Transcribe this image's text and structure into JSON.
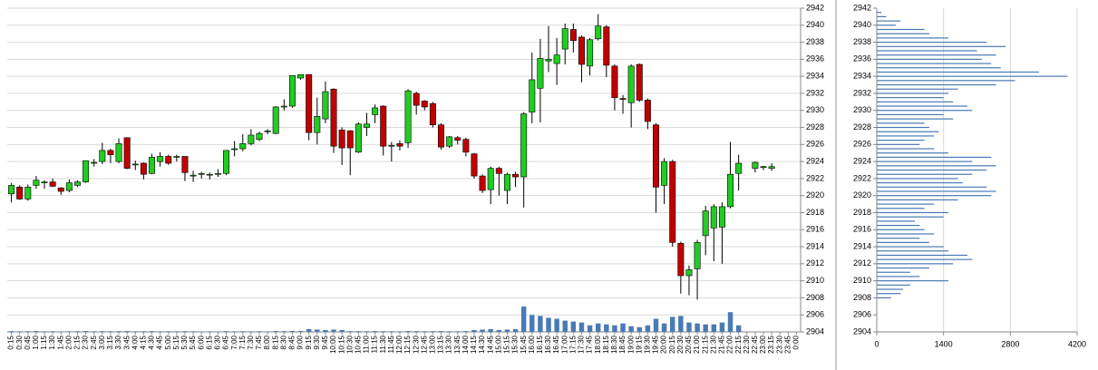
{
  "chart_data": [
    {
      "type": "candlestick",
      "categories": [
        "0:15",
        "0:30",
        "0:45",
        "1:00",
        "1:15",
        "1:30",
        "1:45",
        "2:00",
        "2:15",
        "2:30",
        "2:45",
        "3:00",
        "3:15",
        "3:30",
        "3:45",
        "4:00",
        "4:15",
        "4:30",
        "4:45",
        "5:00",
        "5:15",
        "5:30",
        "5:45",
        "6:00",
        "6:15",
        "6:30",
        "6:45",
        "7:00",
        "7:15",
        "7:30",
        "7:45",
        "8:00",
        "8:15",
        "8:30",
        "8:45",
        "9:00",
        "9:15",
        "9:30",
        "9:45",
        "10:00",
        "10:15",
        "10:30",
        "10:45",
        "11:00",
        "11:15",
        "11:30",
        "11:45",
        "12:00",
        "12:15",
        "12:30",
        "12:45",
        "13:00",
        "13:15",
        "13:30",
        "13:45",
        "14:00",
        "14:15",
        "14:30",
        "14:45",
        "15:00",
        "15:15",
        "15:30",
        "15:45",
        "16:00",
        "16:15",
        "16:30",
        "16:45",
        "17:00",
        "17:15",
        "17:30",
        "17:45",
        "18:00",
        "18:15",
        "18:30",
        "18:45",
        "19:00",
        "19:15",
        "19:30",
        "19:45",
        "20:00",
        "20:15",
        "20:30",
        "20:45",
        "21:00",
        "21:15",
        "21:30",
        "21:45",
        "22:00",
        "22:15",
        "22:30",
        "22:45",
        "23:00",
        "23:15",
        "23:30",
        "23:45",
        "0:00"
      ],
      "open": [
        2920.2,
        2921,
        2919.6,
        2921.2,
        2921.5,
        2921.6,
        2920.9,
        2920.6,
        2921.2,
        2921.6,
        2923.8,
        2924,
        2925.3,
        2924,
        2926.8,
        2923.6,
        2923.8,
        2922.6,
        2924,
        2924.6,
        2924.5,
        2924.6,
        2922.3,
        2922.5,
        2922.4,
        2922.5,
        2922.6,
        2925.4,
        2925.5,
        2926.1,
        2926.6,
        2927.5,
        2927.3,
        2930.4,
        2930.5,
        2933.8,
        2934.2,
        2927.4,
        2929,
        2932.5,
        2927.7,
        2927.6,
        2925.1,
        2928,
        2929.5,
        2930.5,
        2925.8,
        2926.1,
        2926.2,
        2932,
        2931.1,
        2930.8,
        2928.3,
        2925.8,
        2926.8,
        2926.6,
        2924.9,
        2922.3,
        2920.7,
        2923.2,
        2920.6,
        2922.5,
        2922.2,
        2929.8,
        2932.6,
        2935.8,
        2935.5,
        2937.2,
        2939.5,
        2938.6,
        2935.2,
        2938.4,
        2939.8,
        2935.2,
        2931.4,
        2930.9,
        2935.4,
        2931.2,
        2928.3,
        2921.2,
        2924,
        2914.4,
        2910.6,
        2911.4,
        2915.3,
        2916.2,
        2916.3,
        2918.7,
        2922.6,
        null,
        2923.2,
        2923.3,
        2923.2,
        null,
        null,
        null
      ],
      "high": [
        2921.5,
        2921.2,
        2921.3,
        2922.3,
        2921.8,
        2922,
        2921,
        2921.9,
        2921.8,
        2924.1,
        2924.3,
        2926.2,
        2925.5,
        2926.7,
        2926.8,
        2924.1,
        2923.9,
        2924.9,
        2925.1,
        2924.8,
        2924.8,
        2924.6,
        2922.9,
        2922.8,
        2922.7,
        2923.1,
        2925.3,
        2926.4,
        2927.2,
        2927.8,
        2927.5,
        2927.8,
        2930.5,
        2931.3,
        2934.1,
        2934.2,
        2934.2,
        2931.5,
        2933.4,
        2932.6,
        2928,
        2927.7,
        2928.6,
        2929.7,
        2930.7,
        2930.6,
        2926.3,
        2926.5,
        2932.5,
        2932.2,
        2931.2,
        2931,
        2928.5,
        2927,
        2927,
        2926.8,
        2925,
        2922.5,
        2923.4,
        2923.4,
        2922.7,
        2922.8,
        2929.8,
        2936.8,
        2938.4,
        2939.9,
        2938.5,
        2940.2,
        2940.2,
        2938.8,
        2938.5,
        2941.3,
        2940,
        2935.4,
        2931.8,
        2935.4,
        2935.5,
        2931.4,
        2928.5,
        2924.4,
        2924.2,
        2914.6,
        2911.8,
        2914.8,
        2918.8,
        2919,
        2919.2,
        2926.3,
        2924.8,
        null,
        2924,
        2923.5,
        2923.8,
        null,
        null,
        null
      ],
      "low": [
        2919.2,
        2919.5,
        2919.4,
        2920.8,
        2920.8,
        2921,
        2920.1,
        2920.4,
        2921,
        2921.5,
        2923.4,
        2923.7,
        2923.8,
        2923.8,
        2923.1,
        2923,
        2921.9,
        2922.5,
        2923.4,
        2923.6,
        2924,
        2921.7,
        2921.6,
        2922,
        2921.9,
        2922.2,
        2922.4,
        2924.6,
        2925.2,
        2925.9,
        2926.4,
        2927.2,
        2927.2,
        2930,
        2930.3,
        2933.6,
        2926.5,
        2926,
        2928.5,
        2925,
        2923.6,
        2922.4,
        2925,
        2927,
        2928.5,
        2924.7,
        2924,
        2925.3,
        2925.6,
        2929.5,
        2930,
        2928,
        2925.4,
        2925.6,
        2926,
        2924.6,
        2922,
        2920.3,
        2919,
        2920,
        2919,
        2921,
        2918.6,
        2928.5,
        2928.6,
        2934.5,
        2933,
        2935.4,
        2936.8,
        2933.3,
        2934.1,
        2938.2,
        2933.9,
        2930,
        2929.6,
        2928,
        2931,
        2927.8,
        2918,
        2919,
        2914,
        2908.5,
        2908.3,
        2907.8,
        2913,
        2912.3,
        2912,
        2918.5,
        2920.6,
        null,
        2922.7,
        2923,
        2922.9,
        null,
        null,
        null
      ],
      "close": [
        2921.2,
        2919.6,
        2921,
        2921.8,
        2921.6,
        2921.1,
        2920.5,
        2921.5,
        2921.6,
        2924.1,
        2923.9,
        2925.3,
        2924.8,
        2926.1,
        2923.2,
        2923.7,
        2922.5,
        2924.5,
        2924.6,
        2923.8,
        2924.6,
        2922.7,
        2922.4,
        2922.6,
        2922.5,
        2922.6,
        2925.3,
        2925.5,
        2926.1,
        2927.1,
        2927.3,
        2927.6,
        2930.4,
        2930.5,
        2934.1,
        2934.2,
        2927.4,
        2929.3,
        2932.2,
        2925.8,
        2925.6,
        2925.6,
        2928.4,
        2928.4,
        2930.3,
        2925.8,
        2925.9,
        2925.8,
        2932.3,
        2930.6,
        2930.4,
        2928.3,
        2925.7,
        2926.9,
        2926.5,
        2925.1,
        2922.3,
        2920.6,
        2923.2,
        2922.6,
        2922.5,
        2922.2,
        2929.6,
        2933.6,
        2936.1,
        2936,
        2936.5,
        2939.6,
        2938.2,
        2935.4,
        2938.3,
        2939.9,
        2935.3,
        2931.5,
        2931.3,
        2935.2,
        2931.2,
        2928.7,
        2921,
        2924,
        2914.5,
        2910.6,
        2911.3,
        2914.5,
        2918.2,
        2918.7,
        2918.7,
        2922.5,
        2923.8,
        null,
        2923.9,
        2923.4,
        2923.4,
        null,
        null,
        null
      ],
      "volume": [
        80,
        60,
        70,
        90,
        60,
        70,
        50,
        60,
        70,
        90,
        60,
        80,
        70,
        80,
        90,
        60,
        70,
        80,
        60,
        70,
        60,
        80,
        60,
        50,
        60,
        50,
        80,
        60,
        70,
        60,
        70,
        60,
        90,
        80,
        100,
        90,
        300,
        250,
        200,
        250,
        200,
        80,
        80,
        70,
        90,
        80,
        70,
        60,
        90,
        80,
        70,
        80,
        90,
        70,
        60,
        80,
        200,
        250,
        300,
        200,
        250,
        300,
        2700,
        1800,
        1700,
        1500,
        1400,
        1200,
        1100,
        1000,
        700,
        900,
        800,
        700,
        900,
        600,
        500,
        700,
        1400,
        900,
        1600,
        1700,
        1000,
        900,
        800,
        800,
        1000,
        2100,
        700,
        null,
        null,
        null,
        null,
        null,
        null,
        null
      ],
      "up_color": "#22cc22",
      "down_color": "#c00000",
      "volume_color": "#4a7ab5",
      "ylim": [
        2904,
        2942
      ],
      "yticks": [
        2904,
        2906,
        2908,
        2910,
        2912,
        2914,
        2916,
        2918,
        2920,
        2922,
        2924,
        2926,
        2928,
        2930,
        2932,
        2934,
        2936,
        2938,
        2940,
        2942
      ],
      "grid": true
    },
    {
      "type": "hbar",
      "y": [
        2908,
        2908.5,
        2909,
        2909.5,
        2910,
        2910.5,
        2911,
        2911.5,
        2912,
        2912.5,
        2913,
        2913.5,
        2914,
        2914.5,
        2915,
        2915.5,
        2916,
        2916.5,
        2917,
        2917.5,
        2918,
        2918.5,
        2919,
        2919.5,
        2920,
        2920.5,
        2921,
        2921.5,
        2922,
        2922.5,
        2923,
        2923.5,
        2924,
        2924.5,
        2925,
        2925.5,
        2926,
        2926.5,
        2927,
        2927.5,
        2928,
        2928.5,
        2929,
        2929.5,
        2930,
        2930.5,
        2931,
        2931.5,
        2932,
        2932.5,
        2933,
        2933.5,
        2934,
        2934.5,
        2935,
        2935.5,
        2936,
        2936.5,
        2937,
        2937.5,
        2938,
        2938.5,
        2939,
        2939.5,
        2940,
        2940.5,
        2941,
        2941.5
      ],
      "values": [
        300,
        500,
        550,
        700,
        1500,
        900,
        700,
        1100,
        1600,
        2000,
        1900,
        1500,
        1400,
        1100,
        900,
        1200,
        1000,
        900,
        800,
        1400,
        1500,
        1000,
        1200,
        1700,
        2400,
        2500,
        2300,
        1800,
        1700,
        2000,
        2300,
        2500,
        2000,
        2400,
        1500,
        1200,
        900,
        1000,
        1200,
        1300,
        1100,
        1000,
        1600,
        1400,
        2000,
        1900,
        1600,
        1400,
        1500,
        1700,
        2500,
        2900,
        4000,
        3400,
        2600,
        2400,
        2200,
        2500,
        2100,
        2700,
        2300,
        1500,
        1100,
        1000,
        400,
        500,
        200,
        100
      ],
      "color": "#4a7ab5",
      "xlim": [
        0,
        4200
      ],
      "xticks": [
        0,
        1400,
        2800,
        4200
      ],
      "ylim": [
        2904,
        2942
      ],
      "yticks": [
        2904,
        2906,
        2908,
        2910,
        2912,
        2914,
        2916,
        2918,
        2920,
        2922,
        2924,
        2926,
        2928,
        2930,
        2932,
        2934,
        2936,
        2938,
        2940,
        2942
      ],
      "grid": true
    }
  ]
}
